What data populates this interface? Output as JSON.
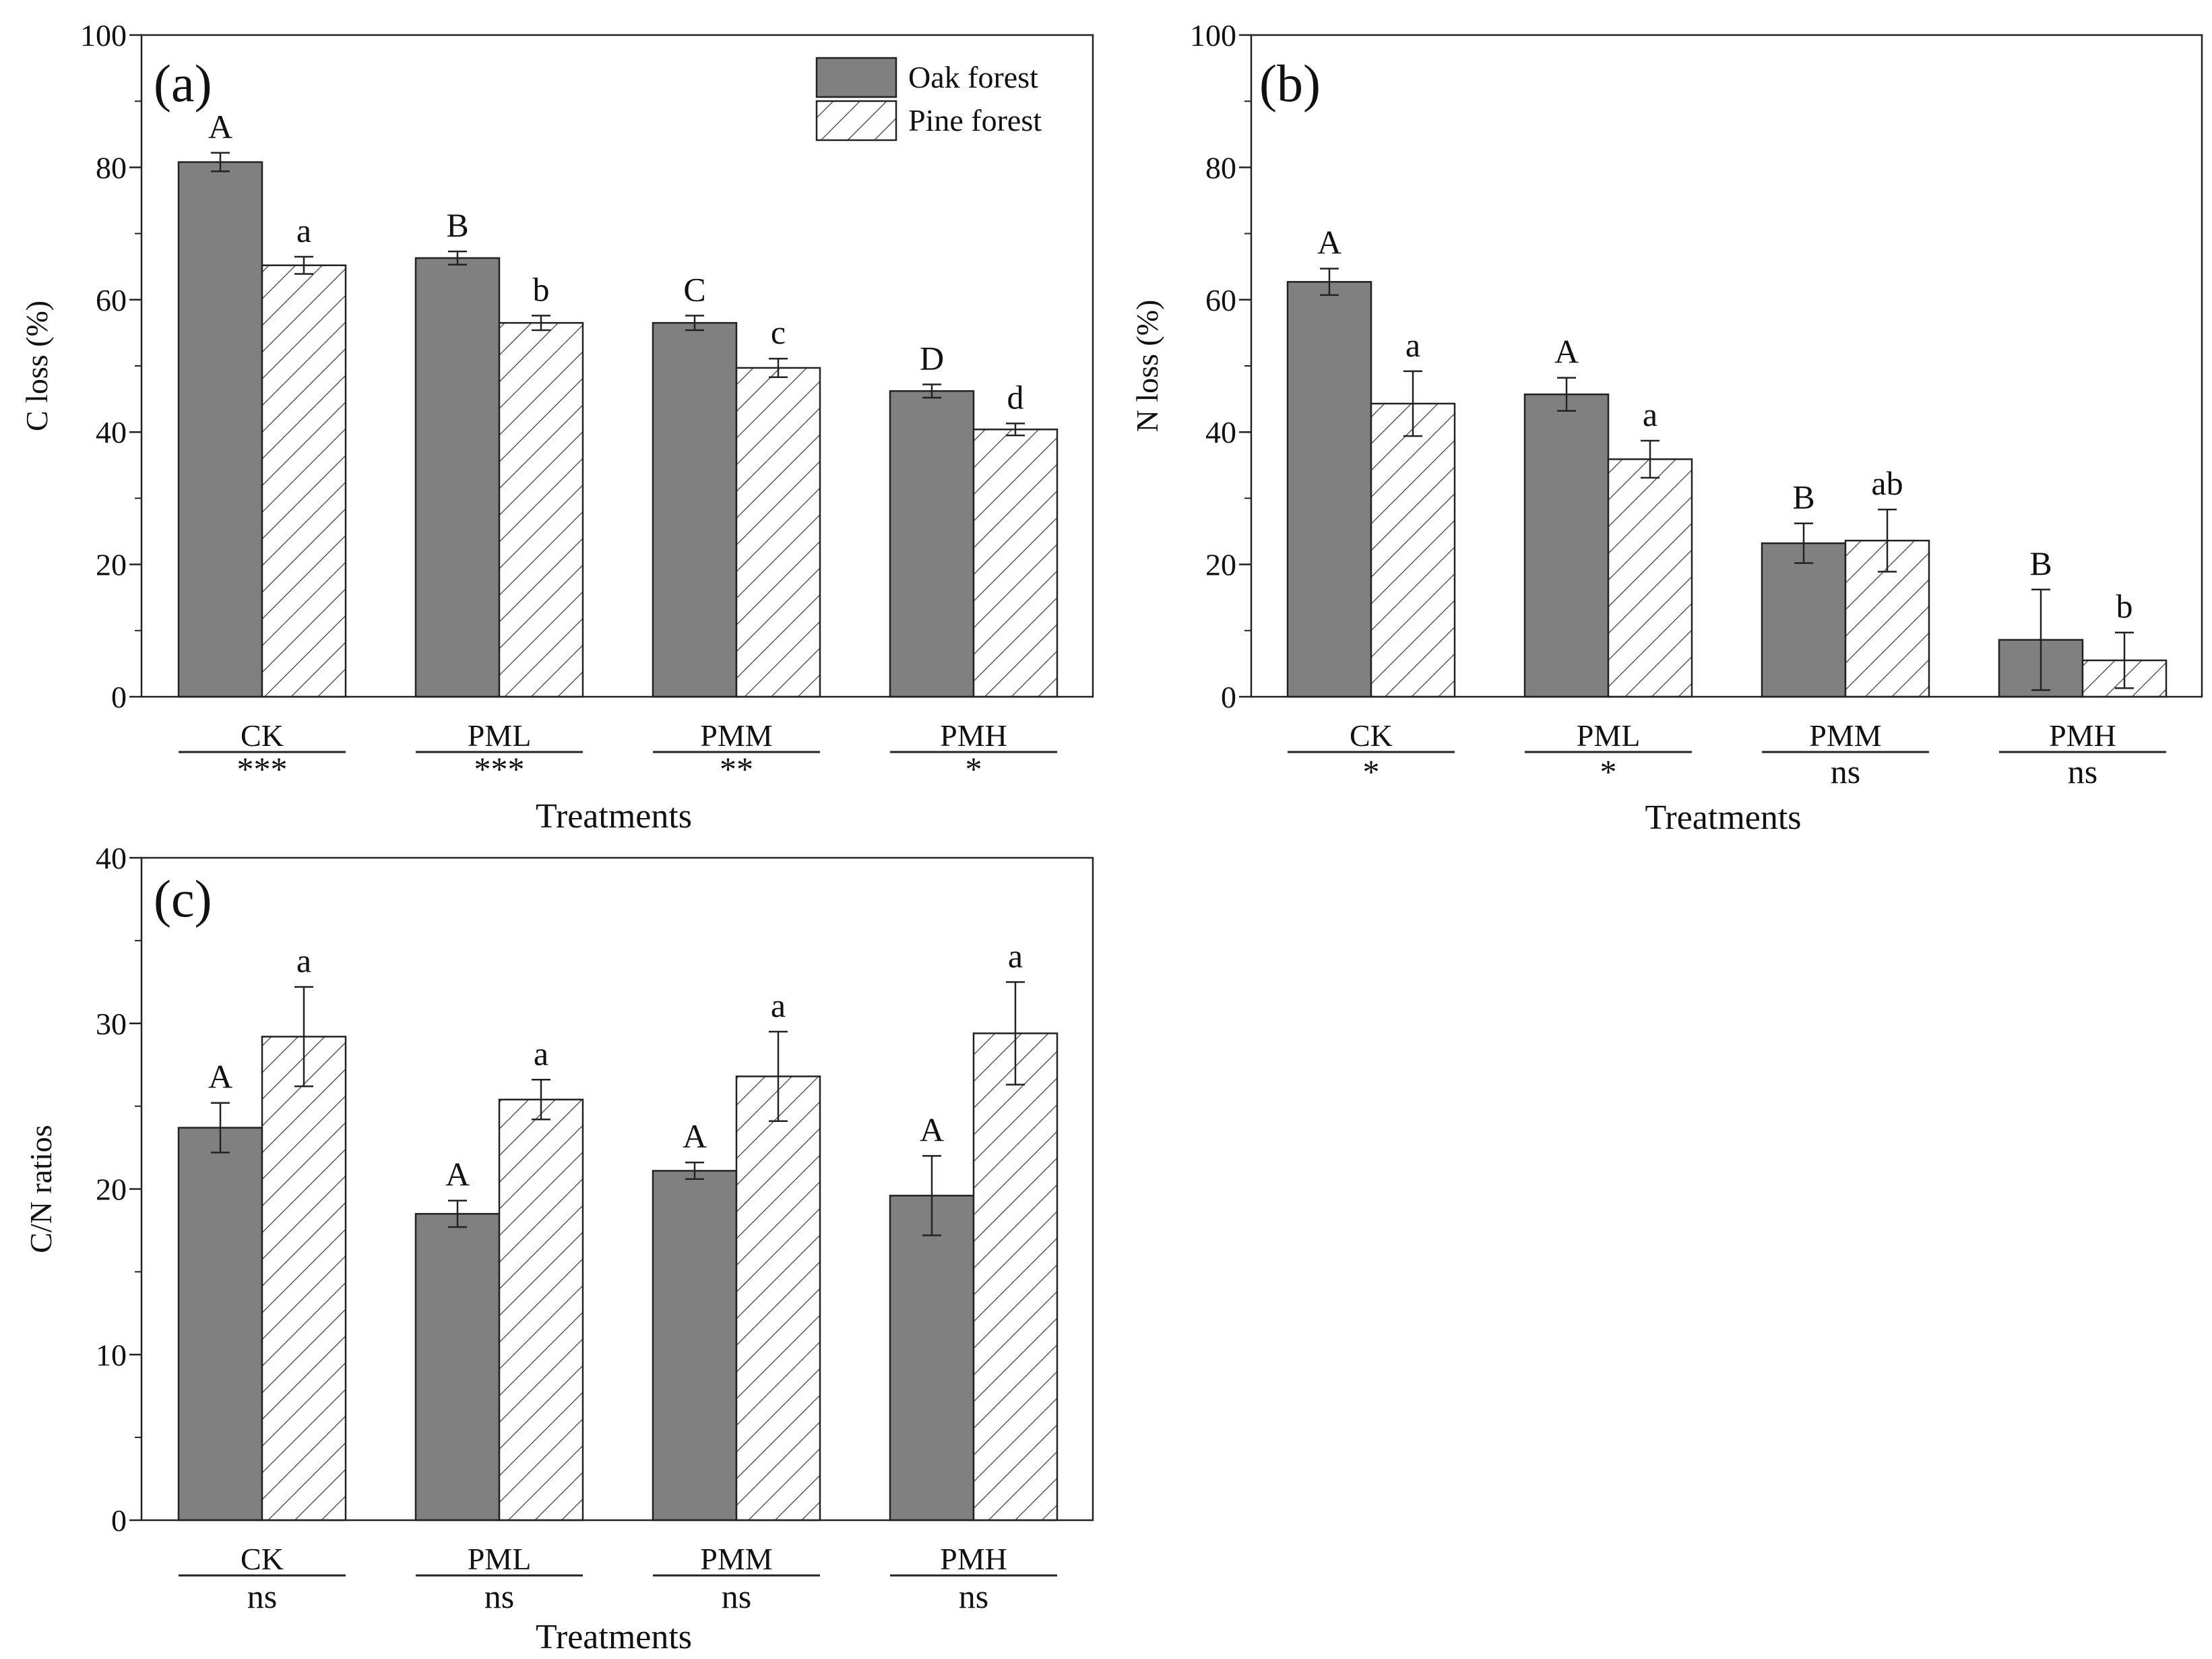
{
  "legend": {
    "series": [
      {
        "key": "oak",
        "name": "Oak forest",
        "color": "#808080",
        "pattern": "solid"
      },
      {
        "key": "pine",
        "name": "Pine forest",
        "color": "#ffffff",
        "pattern": "hatch"
      }
    ]
  },
  "chart_data": [
    {
      "panel": "(a)",
      "type": "bar",
      "title": "",
      "xlabel": "Treatments",
      "ylabel": "C loss (%)",
      "ylim": [
        0,
        100
      ],
      "yticks": [
        0,
        20,
        40,
        60,
        80,
        100
      ],
      "categories": [
        "CK",
        "PML",
        "PMM",
        "PMH"
      ],
      "significance": [
        "***",
        "***",
        "**",
        "*"
      ],
      "show_legend": true,
      "series": [
        {
          "name": "Oak forest",
          "values": [
            80.8,
            66.3,
            56.5,
            46.2
          ],
          "errors": [
            1.4,
            1.0,
            1.1,
            1.0
          ],
          "letters": [
            "A",
            "B",
            "C",
            "D"
          ]
        },
        {
          "name": "Pine forest",
          "values": [
            65.2,
            56.5,
            49.7,
            40.4
          ],
          "errors": [
            1.3,
            1.1,
            1.4,
            0.9
          ],
          "letters": [
            "a",
            "b",
            "c",
            "d"
          ]
        }
      ]
    },
    {
      "panel": "(b)",
      "type": "bar",
      "title": "",
      "xlabel": "Treatments",
      "ylabel": "N loss (%)",
      "ylim": [
        0,
        100
      ],
      "yticks": [
        0,
        20,
        40,
        60,
        80,
        100
      ],
      "categories": [
        "CK",
        "PML",
        "PMM",
        "PMH"
      ],
      "significance": [
        "*",
        "*",
        "ns",
        "ns"
      ],
      "show_legend": false,
      "series": [
        {
          "name": "Oak forest",
          "values": [
            62.7,
            45.7,
            23.2,
            8.6
          ],
          "errors": [
            2.0,
            2.5,
            3.0,
            7.6
          ],
          "letters": [
            "A",
            "A",
            "B",
            "B"
          ]
        },
        {
          "name": "Pine forest",
          "values": [
            44.3,
            35.9,
            23.6,
            5.5
          ],
          "errors": [
            4.9,
            2.8,
            4.7,
            4.2
          ],
          "letters": [
            "a",
            "a",
            "ab",
            "b"
          ]
        }
      ]
    },
    {
      "panel": "(c)",
      "type": "bar",
      "title": "",
      "xlabel": "Treatments",
      "ylabel": "C/N ratios",
      "ylim": [
        0,
        40
      ],
      "yticks": [
        0,
        10,
        20,
        30,
        40
      ],
      "categories": [
        "CK",
        "PML",
        "PMM",
        "PMH"
      ],
      "significance": [
        "ns",
        "ns",
        "ns",
        "ns"
      ],
      "show_legend": false,
      "series": [
        {
          "name": "Oak forest",
          "values": [
            23.7,
            18.5,
            21.1,
            19.6
          ],
          "errors": [
            1.5,
            0.8,
            0.5,
            2.4
          ],
          "letters": [
            "A",
            "A",
            "A",
            "A"
          ]
        },
        {
          "name": "Pine forest",
          "values": [
            29.2,
            25.4,
            26.8,
            29.4
          ],
          "errors": [
            3.0,
            1.2,
            2.7,
            3.1
          ],
          "letters": [
            "a",
            "a",
            "a",
            "a"
          ]
        }
      ]
    }
  ]
}
